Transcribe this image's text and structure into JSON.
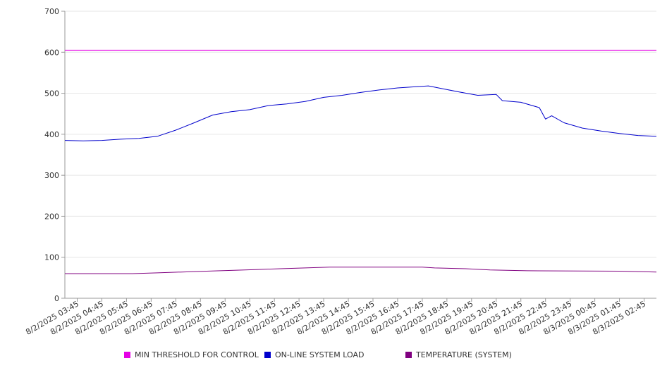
{
  "chart_data": {
    "type": "line",
    "title": "",
    "xlabel": "",
    "ylabel": "",
    "ylim": [
      0,
      700
    ],
    "y_ticks": [
      0,
      100,
      200,
      300,
      400,
      500,
      600,
      700
    ],
    "grid": "horizontal",
    "legend_position": "bottom",
    "x_tick_labels": [
      "8/2/2025 03:45",
      "8/2/2025 04:45",
      "8/2/2025 05:45",
      "8/2/2025 06:45",
      "8/2/2025 07:45",
      "8/2/2025 08:45",
      "8/2/2025 09:45",
      "8/2/2025 10:45",
      "8/2/2025 11:45",
      "8/2/2025 12:45",
      "8/2/2025 13:45",
      "8/2/2025 14:45",
      "8/2/2025 15:45",
      "8/2/2025 16:45",
      "8/2/2025 17:45",
      "8/2/2025 18:45",
      "8/2/2025 19:45",
      "8/2/2025 20:45",
      "8/2/2025 21:45",
      "8/2/2025 22:45",
      "8/2/2025 23:45",
      "8/3/2025 00:45",
      "8/3/2025 01:45",
      "8/3/2025 02:45"
    ],
    "x_range": [
      "8/2/2025 03:15",
      "8/3/2025 03:15"
    ],
    "series": [
      {
        "name": "MIN THRESHOLD FOR CONTROL",
        "color": "#e600e6",
        "x": [
          "8/2/2025 03:15",
          "8/3/2025 03:15"
        ],
        "values": [
          605,
          605
        ]
      },
      {
        "name": "ON-LINE SYSTEM LOAD",
        "color": "#0000cc",
        "x": [
          "8/2/2025 03:15",
          "8/2/2025 04:00",
          "8/2/2025 04:45",
          "8/2/2025 05:30",
          "8/2/2025 06:15",
          "8/2/2025 07:00",
          "8/2/2025 07:45",
          "8/2/2025 08:30",
          "8/2/2025 09:15",
          "8/2/2025 10:00",
          "8/2/2025 10:45",
          "8/2/2025 11:30",
          "8/2/2025 12:15",
          "8/2/2025 13:00",
          "8/2/2025 13:45",
          "8/2/2025 14:30",
          "8/2/2025 15:15",
          "8/2/2025 16:00",
          "8/2/2025 16:45",
          "8/2/2025 17:30",
          "8/2/2025 18:00",
          "8/2/2025 18:30",
          "8/2/2025 19:15",
          "8/2/2025 20:00",
          "8/2/2025 20:45",
          "8/2/2025 21:00",
          "8/2/2025 21:45",
          "8/2/2025 22:30",
          "8/2/2025 22:45",
          "8/2/2025 23:00",
          "8/2/2025 23:30",
          "8/3/2025 00:15",
          "8/3/2025 01:00",
          "8/3/2025 01:45",
          "8/3/2025 02:30",
          "8/3/2025 03:15"
        ],
        "values": [
          385,
          384,
          385,
          388,
          390,
          395,
          410,
          428,
          447,
          455,
          460,
          470,
          474,
          480,
          490,
          495,
          502,
          508,
          513,
          516,
          518,
          512,
          503,
          495,
          497,
          482,
          478,
          465,
          437,
          445,
          428,
          415,
          408,
          402,
          397,
          395
        ]
      },
      {
        "name": "TEMPERATURE (SYSTEM)",
        "color": "#800080",
        "x": [
          "8/2/2025 03:15",
          "8/2/2025 06:00",
          "8/2/2025 07:00",
          "8/2/2025 08:00",
          "8/2/2025 09:00",
          "8/2/2025 10:00",
          "8/2/2025 11:00",
          "8/2/2025 12:00",
          "8/2/2025 13:00",
          "8/2/2025 14:00",
          "8/2/2025 17:45",
          "8/2/2025 18:15",
          "8/2/2025 19:30",
          "8/2/2025 20:30",
          "8/2/2025 22:00",
          "8/3/2025 01:45",
          "8/3/2025 03:15"
        ],
        "values": [
          60,
          60,
          62,
          64,
          66,
          68,
          70,
          72,
          74,
          76,
          76,
          74,
          72,
          69,
          67,
          66,
          64
        ]
      }
    ]
  }
}
